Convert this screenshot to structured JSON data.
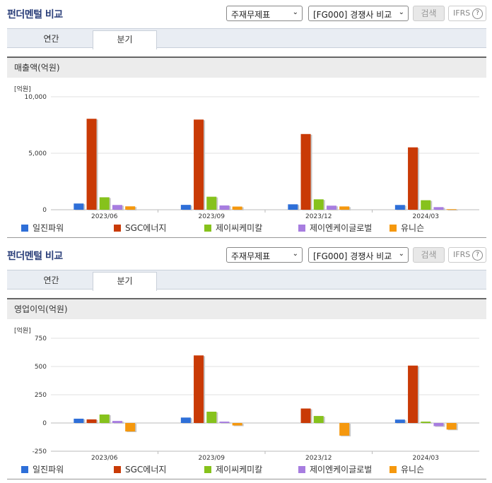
{
  "panels": [
    {
      "title": "펀더멘털 비교",
      "report_select": "주재무제표",
      "compare_select": "[FG000] 경쟁사 비교",
      "search_label": "검색",
      "ifrs_label": "IFRS",
      "help_label": "?",
      "tabs": [
        "연간",
        "분기"
      ],
      "active_tab": "분기",
      "section_title": "매출액(억원)",
      "unit_label": "[억원]"
    },
    {
      "title": "펀더멘털 비교",
      "report_select": "주재무제표",
      "compare_select": "[FG000] 경쟁사 비교",
      "search_label": "검색",
      "ifrs_label": "IFRS",
      "help_label": "?",
      "tabs": [
        "연간",
        "분기"
      ],
      "active_tab": "분기",
      "section_title": "영업이익(억원)",
      "unit_label": "[억원]"
    }
  ],
  "colors": {
    "일진파워": "#2e6fd8",
    "SGC에너지": "#c93a06",
    "제이씨케미칼": "#86c21c",
    "제이엔케이글로벌": "#a77de0",
    "유니슨": "#f5980e"
  },
  "chart_data": [
    {
      "type": "bar",
      "ylabel": "[억원]",
      "categories": [
        "2023/06",
        "2023/09",
        "2023/12",
        "2024/03"
      ],
      "ylim": [
        0,
        10000
      ],
      "yticks": [
        0,
        5000,
        10000
      ],
      "ytick_labels": [
        "0",
        "5,000",
        "10,000"
      ],
      "grid": true,
      "legend_position": "bottom",
      "series": [
        {
          "name": "일진파워",
          "values": [
            550,
            430,
            480,
            420
          ]
        },
        {
          "name": "SGC에너지",
          "values": [
            8050,
            7980,
            6700,
            5520
          ]
        },
        {
          "name": "제이씨케미칼",
          "values": [
            1100,
            1150,
            920,
            840
          ]
        },
        {
          "name": "제이엔케이글로벌",
          "values": [
            420,
            380,
            360,
            230
          ]
        },
        {
          "name": "유니슨",
          "values": [
            300,
            280,
            290,
            50
          ]
        }
      ]
    },
    {
      "type": "bar",
      "ylabel": "[억원]",
      "categories": [
        "2023/06",
        "2023/09",
        "2023/12",
        "2024/03"
      ],
      "ylim": [
        -250,
        750
      ],
      "yticks": [
        -250,
        0,
        250,
        500,
        750
      ],
      "ytick_labels": [
        "-250",
        "0",
        "250",
        "500",
        "750"
      ],
      "grid": true,
      "legend_position": "bottom",
      "series": [
        {
          "name": "일진파워",
          "values": [
            38,
            48,
            0,
            30
          ]
        },
        {
          "name": "SGC에너지",
          "values": [
            32,
            598,
            128,
            508
          ]
        },
        {
          "name": "제이씨케미칼",
          "values": [
            75,
            100,
            62,
            12
          ]
        },
        {
          "name": "제이엔케이글로벌",
          "values": [
            18,
            12,
            0,
            -28
          ]
        },
        {
          "name": "유니슨",
          "values": [
            -75,
            -22,
            -112,
            -58
          ]
        }
      ]
    }
  ]
}
